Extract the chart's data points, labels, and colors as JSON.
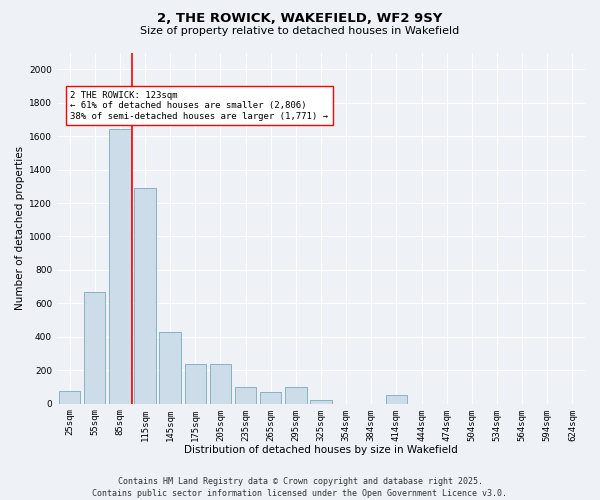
{
  "title": "2, THE ROWICK, WAKEFIELD, WF2 9SY",
  "subtitle": "Size of property relative to detached houses in Wakefield",
  "xlabel": "Distribution of detached houses by size in Wakefield",
  "ylabel": "Number of detached properties",
  "categories": [
    "25sqm",
    "55sqm",
    "85sqm",
    "115sqm",
    "145sqm",
    "175sqm",
    "205sqm",
    "235sqm",
    "265sqm",
    "295sqm",
    "325sqm",
    "354sqm",
    "384sqm",
    "414sqm",
    "444sqm",
    "474sqm",
    "504sqm",
    "534sqm",
    "564sqm",
    "594sqm",
    "624sqm"
  ],
  "values": [
    75,
    670,
    1640,
    1290,
    430,
    240,
    240,
    100,
    70,
    100,
    20,
    0,
    0,
    50,
    0,
    0,
    0,
    0,
    0,
    0,
    0
  ],
  "bar_color": "#ccdce8",
  "bar_edge_color": "#7aaabb",
  "vline_color": "red",
  "vline_pos": 2.5,
  "annotation_text": "2 THE ROWICK: 123sqm\n← 61% of detached houses are smaller (2,806)\n38% of semi-detached houses are larger (1,771) →",
  "annotation_box_color": "white",
  "annotation_box_edge_color": "red",
  "ylim": [
    0,
    2100
  ],
  "yticks": [
    0,
    200,
    400,
    600,
    800,
    1000,
    1200,
    1400,
    1600,
    1800,
    2000
  ],
  "footer_line1": "Contains HM Land Registry data © Crown copyright and database right 2025.",
  "footer_line2": "Contains public sector information licensed under the Open Government Licence v3.0.",
  "background_color": "#eef2f7",
  "plot_background_color": "#eef2f7",
  "grid_color": "white",
  "title_fontsize": 9.5,
  "subtitle_fontsize": 8,
  "axis_label_fontsize": 7.5,
  "tick_fontsize": 6.5,
  "annotation_fontsize": 6.5,
  "footer_fontsize": 6
}
